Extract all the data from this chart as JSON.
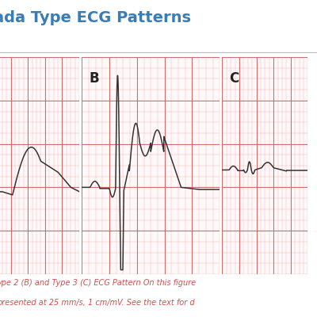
{
  "title": "ada Type ECG Patterns",
  "title_color": "#3a7cb5",
  "title_fontsize": 14,
  "caption_line1": "ype 2 (B) and Type 3 (C) ECG Pattern On this figure",
  "caption_line2": "presented at 25 mm/s, 1 cm/mV. See the text for d",
  "caption_color": "#d05050",
  "caption_fontsize": 7.0,
  "bg_color": "#ffffff",
  "grid_major_color": "#d06060",
  "grid_minor_color": "#ecaaaa",
  "panel_bg": "#fff8f8",
  "label_B": "B",
  "label_C": "C",
  "ecg_color": "#333333",
  "ecg_linewidth": 1.1,
  "title_sep_color": "#bbbbbb"
}
